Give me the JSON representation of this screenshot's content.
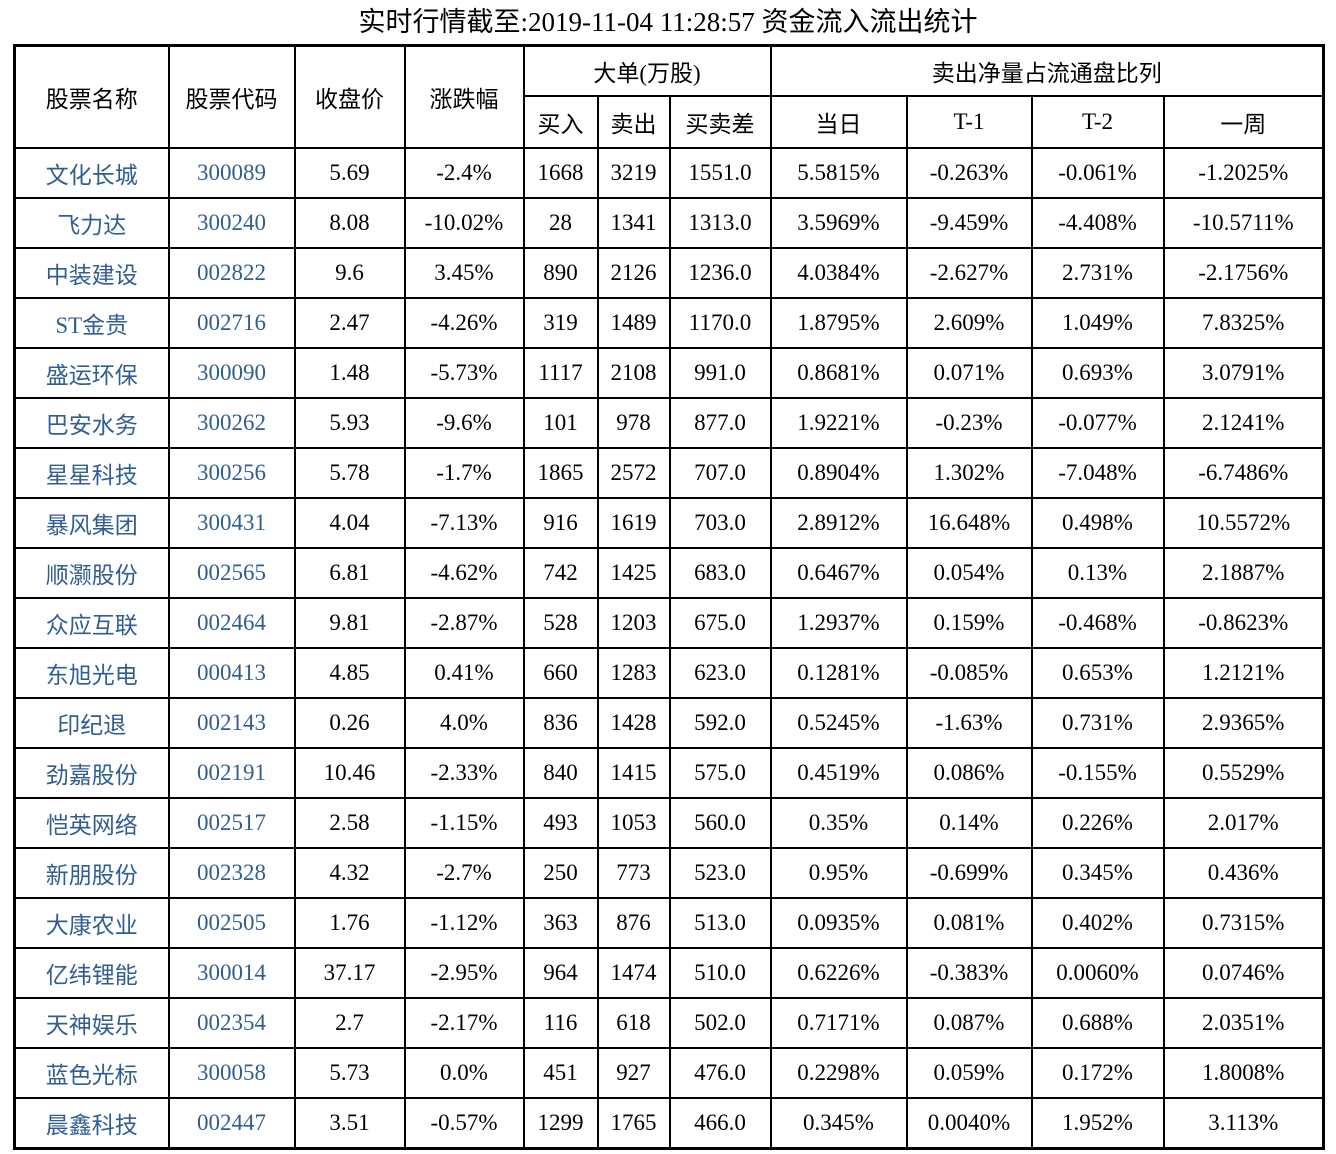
{
  "title": "实时行情截至:2019-11-04 11:28:57 资金流入流出统计",
  "colors": {
    "stock_link_blue": "#305E90",
    "table_border": "#000000",
    "text": "#000000",
    "background": "#ffffff"
  },
  "table": {
    "headers": {
      "stock_name": "股票名称",
      "stock_code": "股票代码",
      "close_price": "收盘价",
      "change_pct": "涨跌幅",
      "large_orders_group": "大单(万股)",
      "buy": "买入",
      "sell": "卖出",
      "buy_sell_diff": "买卖差",
      "net_sell_group": "卖出净量占流通盘比列",
      "day": "当日",
      "t1": "T-1",
      "t2": "T-2",
      "week": "一周"
    },
    "rows": [
      {
        "name": "文化长城",
        "code": "300089",
        "close": "5.69",
        "change": "-2.4%",
        "buy": "1668",
        "sell": "3219",
        "diff": "1551.0",
        "day": "5.5815%",
        "t1": "-0.263%",
        "t2": "-0.061%",
        "week": "-1.2025%"
      },
      {
        "name": "飞力达",
        "code": "300240",
        "close": "8.08",
        "change": "-10.02%",
        "buy": "28",
        "sell": "1341",
        "diff": "1313.0",
        "day": "3.5969%",
        "t1": "-9.459%",
        "t2": "-4.408%",
        "week": "-10.5711%"
      },
      {
        "name": "中装建设",
        "code": "002822",
        "close": "9.6",
        "change": "3.45%",
        "buy": "890",
        "sell": "2126",
        "diff": "1236.0",
        "day": "4.0384%",
        "t1": "-2.627%",
        "t2": "2.731%",
        "week": "-2.1756%"
      },
      {
        "name": "ST金贵",
        "code": "002716",
        "close": "2.47",
        "change": "-4.26%",
        "buy": "319",
        "sell": "1489",
        "diff": "1170.0",
        "day": "1.8795%",
        "t1": "2.609%",
        "t2": "1.049%",
        "week": "7.8325%"
      },
      {
        "name": "盛运环保",
        "code": "300090",
        "close": "1.48",
        "change": "-5.73%",
        "buy": "1117",
        "sell": "2108",
        "diff": "991.0",
        "day": "0.8681%",
        "t1": "0.071%",
        "t2": "0.693%",
        "week": "3.0791%"
      },
      {
        "name": "巴安水务",
        "code": "300262",
        "close": "5.93",
        "change": "-9.6%",
        "buy": "101",
        "sell": "978",
        "diff": "877.0",
        "day": "1.9221%",
        "t1": "-0.23%",
        "t2": "-0.077%",
        "week": "2.1241%"
      },
      {
        "name": "星星科技",
        "code": "300256",
        "close": "5.78",
        "change": "-1.7%",
        "buy": "1865",
        "sell": "2572",
        "diff": "707.0",
        "day": "0.8904%",
        "t1": "1.302%",
        "t2": "-7.048%",
        "week": "-6.7486%"
      },
      {
        "name": "暴风集团",
        "code": "300431",
        "close": "4.04",
        "change": "-7.13%",
        "buy": "916",
        "sell": "1619",
        "diff": "703.0",
        "day": "2.8912%",
        "t1": "16.648%",
        "t2": "0.498%",
        "week": "10.5572%"
      },
      {
        "name": "顺灏股份",
        "code": "002565",
        "close": "6.81",
        "change": "-4.62%",
        "buy": "742",
        "sell": "1425",
        "diff": "683.0",
        "day": "0.6467%",
        "t1": "0.054%",
        "t2": "0.13%",
        "week": "2.1887%"
      },
      {
        "name": "众应互联",
        "code": "002464",
        "close": "9.81",
        "change": "-2.87%",
        "buy": "528",
        "sell": "1203",
        "diff": "675.0",
        "day": "1.2937%",
        "t1": "0.159%",
        "t2": "-0.468%",
        "week": "-0.8623%"
      },
      {
        "name": "东旭光电",
        "code": "000413",
        "close": "4.85",
        "change": "0.41%",
        "buy": "660",
        "sell": "1283",
        "diff": "623.0",
        "day": "0.1281%",
        "t1": "-0.085%",
        "t2": "0.653%",
        "week": "1.2121%"
      },
      {
        "name": "印纪退",
        "code": "002143",
        "close": "0.26",
        "change": "4.0%",
        "buy": "836",
        "sell": "1428",
        "diff": "592.0",
        "day": "0.5245%",
        "t1": "-1.63%",
        "t2": "0.731%",
        "week": "2.9365%"
      },
      {
        "name": "劲嘉股份",
        "code": "002191",
        "close": "10.46",
        "change": "-2.33%",
        "buy": "840",
        "sell": "1415",
        "diff": "575.0",
        "day": "0.4519%",
        "t1": "0.086%",
        "t2": "-0.155%",
        "week": "0.5529%"
      },
      {
        "name": "恺英网络",
        "code": "002517",
        "close": "2.58",
        "change": "-1.15%",
        "buy": "493",
        "sell": "1053",
        "diff": "560.0",
        "day": "0.35%",
        "t1": "0.14%",
        "t2": "0.226%",
        "week": "2.017%"
      },
      {
        "name": "新朋股份",
        "code": "002328",
        "close": "4.32",
        "change": "-2.7%",
        "buy": "250",
        "sell": "773",
        "diff": "523.0",
        "day": "0.95%",
        "t1": "-0.699%",
        "t2": "0.345%",
        "week": "0.436%"
      },
      {
        "name": "大康农业",
        "code": "002505",
        "close": "1.76",
        "change": "-1.12%",
        "buy": "363",
        "sell": "876",
        "diff": "513.0",
        "day": "0.0935%",
        "t1": "0.081%",
        "t2": "0.402%",
        "week": "0.7315%"
      },
      {
        "name": "亿纬锂能",
        "code": "300014",
        "close": "37.17",
        "change": "-2.95%",
        "buy": "964",
        "sell": "1474",
        "diff": "510.0",
        "day": "0.6226%",
        "t1": "-0.383%",
        "t2": "0.0060%",
        "week": "0.0746%"
      },
      {
        "name": "天神娱乐",
        "code": "002354",
        "close": "2.7",
        "change": "-2.17%",
        "buy": "116",
        "sell": "618",
        "diff": "502.0",
        "day": "0.7171%",
        "t1": "0.087%",
        "t2": "0.688%",
        "week": "2.0351%"
      },
      {
        "name": "蓝色光标",
        "code": "300058",
        "close": "5.73",
        "change": "0.0%",
        "buy": "451",
        "sell": "927",
        "diff": "476.0",
        "day": "0.2298%",
        "t1": "0.059%",
        "t2": "0.172%",
        "week": "1.8008%"
      },
      {
        "name": "晨鑫科技",
        "code": "002447",
        "close": "3.51",
        "change": "-0.57%",
        "buy": "1299",
        "sell": "1765",
        "diff": "466.0",
        "day": "0.345%",
        "t1": "0.0040%",
        "t2": "1.952%",
        "week": "3.113%"
      }
    ]
  }
}
